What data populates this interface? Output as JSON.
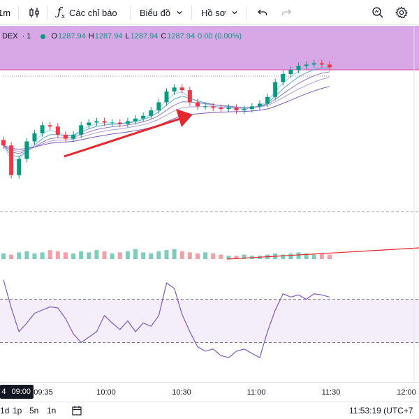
{
  "toolbar": {
    "interval": "1m",
    "indicators_label": "Các chỉ báo",
    "chart_menu_label": "Biểu đồ",
    "profile_menu_label": "Hồ sơ",
    "icons": [
      "candles-icon",
      "fx-icon",
      "undo-icon",
      "redo-icon",
      "zoom-icon",
      "gear-icon"
    ]
  },
  "legend": {
    "symbol": "DEX",
    "interval": "1",
    "open_key": "O",
    "open": "1287.94",
    "high_key": "H",
    "high": "1287.94",
    "low_key": "L",
    "low": "1287.94",
    "close_key": "C",
    "close": "1287.94",
    "change": "0.00 (0.00%)",
    "status_color": "#089981"
  },
  "time_axis": {
    "highlight_day": "4",
    "highlight_time": "09:00",
    "labels": [
      "09:35",
      "10:00",
      "10:30",
      "11:00",
      "11:30",
      "12:00"
    ]
  },
  "bottom_bar": {
    "ranges": [
      "1d",
      "1p",
      "5n",
      "1n"
    ],
    "clock": "11:53:19 (UTC+7"
  },
  "colors": {
    "up": "#089981",
    "down": "#f23645",
    "highlight_band": "#d8a8e6",
    "rsi_line": "#7e57c2",
    "rsi_band": "#f3eefa",
    "arrow": "#e8262e"
  },
  "chart_data": [
    {
      "type": "candlestick",
      "panel": "price",
      "x": [
        "09:25",
        "09:28",
        "09:31",
        "09:34",
        "09:37",
        "09:40",
        "09:43",
        "09:46",
        "09:49",
        "09:52",
        "09:55",
        "09:58",
        "10:01",
        "10:04",
        "10:07",
        "10:10",
        "10:13",
        "10:16",
        "10:19",
        "10:22",
        "10:25",
        "10:28",
        "10:31",
        "10:34",
        "10:37",
        "10:40",
        "10:43",
        "10:46",
        "10:49",
        "10:52",
        "10:55",
        "10:58",
        "11:01",
        "11:04",
        "11:07",
        "11:10",
        "11:13",
        "11:16",
        "11:19",
        "11:22",
        "11:25",
        "11:28",
        "11:31"
      ],
      "close": [
        1282.8,
        1280.6,
        1281.8,
        1283.1,
        1283.7,
        1284.3,
        1284.2,
        1283.6,
        1283.3,
        1283.6,
        1284.3,
        1284.5,
        1284.6,
        1284.5,
        1284.5,
        1284.4,
        1284.6,
        1284.8,
        1285.0,
        1285.4,
        1286.0,
        1286.8,
        1287.1,
        1286.9,
        1286.0,
        1285.7,
        1285.7,
        1285.6,
        1285.5,
        1285.6,
        1285.4,
        1285.5,
        1285.7,
        1285.9,
        1286.4,
        1287.5,
        1288.1,
        1288.4,
        1288.7,
        1288.8,
        1288.9,
        1288.8,
        1288.6
      ],
      "ma_lines": 5,
      "price_levels": [
        1287.94
      ]
    },
    {
      "type": "bar",
      "panel": "volume",
      "x": [
        "09:25",
        "09:28",
        "09:31",
        "09:34",
        "09:37",
        "09:40",
        "09:43",
        "09:46",
        "09:49",
        "09:52",
        "09:55",
        "09:58",
        "10:01",
        "10:04",
        "10:07",
        "10:10",
        "10:13",
        "10:16",
        "10:19",
        "10:22",
        "10:25",
        "10:28",
        "10:31",
        "10:34",
        "10:37",
        "10:40",
        "10:43",
        "10:46",
        "10:49",
        "10:52",
        "10:55",
        "10:58",
        "11:01",
        "11:04",
        "11:07",
        "11:10",
        "11:13",
        "11:16",
        "11:19",
        "11:22",
        "11:25",
        "11:28",
        "11:31"
      ],
      "values": [
        5,
        4,
        6,
        7,
        5,
        6,
        8,
        7,
        6,
        5,
        7,
        6,
        8,
        7,
        5,
        6,
        7,
        9,
        6,
        5,
        7,
        8,
        9,
        7,
        6,
        5,
        6,
        5,
        4,
        3,
        3,
        4,
        3,
        3,
        4,
        5,
        4,
        5,
        6,
        5,
        4,
        5,
        4
      ]
    },
    {
      "type": "line",
      "panel": "rsi",
      "x": [
        "09:25",
        "09:28",
        "09:31",
        "09:34",
        "09:37",
        "09:40",
        "09:43",
        "09:46",
        "09:49",
        "09:52",
        "09:55",
        "09:58",
        "10:01",
        "10:04",
        "10:07",
        "10:10",
        "10:13",
        "10:16",
        "10:19",
        "10:22",
        "10:25",
        "10:28",
        "10:31",
        "10:34",
        "10:37",
        "10:40",
        "10:43",
        "10:46",
        "10:49",
        "10:52",
        "10:55",
        "10:58",
        "11:01",
        "11:04",
        "11:07",
        "11:10",
        "11:13",
        "11:16",
        "11:19",
        "11:22",
        "11:25",
        "11:28",
        "11:31"
      ],
      "values": [
        88,
        62,
        40,
        48,
        57,
        60,
        63,
        62,
        52,
        38,
        30,
        35,
        40,
        55,
        48,
        42,
        50,
        40,
        48,
        45,
        55,
        85,
        80,
        56,
        40,
        26,
        22,
        24,
        18,
        16,
        22,
        24,
        20,
        16,
        40,
        60,
        75,
        72,
        74,
        70,
        75,
        74,
        72
      ],
      "levels": [
        70,
        30
      ]
    }
  ]
}
